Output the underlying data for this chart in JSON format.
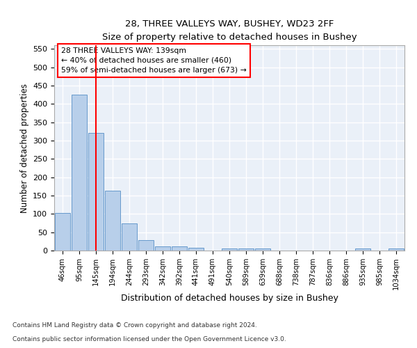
{
  "title_line1": "28, THREE VALLEYS WAY, BUSHEY, WD23 2FF",
  "title_line2": "Size of property relative to detached houses in Bushey",
  "xlabel": "Distribution of detached houses by size in Bushey",
  "ylabel": "Number of detached properties",
  "footnote1": "Contains HM Land Registry data © Crown copyright and database right 2024.",
  "footnote2": "Contains public sector information licensed under the Open Government Licence v3.0.",
  "bin_labels": [
    "46sqm",
    "95sqm",
    "145sqm",
    "194sqm",
    "244sqm",
    "293sqm",
    "342sqm",
    "392sqm",
    "441sqm",
    "491sqm",
    "540sqm",
    "589sqm",
    "639sqm",
    "688sqm",
    "738sqm",
    "787sqm",
    "836sqm",
    "886sqm",
    "935sqm",
    "985sqm",
    "1034sqm"
  ],
  "bar_heights": [
    103,
    425,
    320,
    163,
    74,
    28,
    12,
    12,
    8,
    0,
    5,
    5,
    5,
    0,
    0,
    0,
    0,
    0,
    5,
    0,
    5
  ],
  "bar_color": "#b8cfea",
  "bar_edge_color": "#6699cc",
  "ylim": [
    0,
    560
  ],
  "yticks": [
    0,
    50,
    100,
    150,
    200,
    250,
    300,
    350,
    400,
    450,
    500,
    550
  ],
  "property_label": "28 THREE VALLEYS WAY: 139sqm",
  "annotation_line1": "← 40% of detached houses are smaller (460)",
  "annotation_line2": "59% of semi-detached houses are larger (673) →",
  "red_line_x": 2.0,
  "background_color": "#eaf0f8"
}
